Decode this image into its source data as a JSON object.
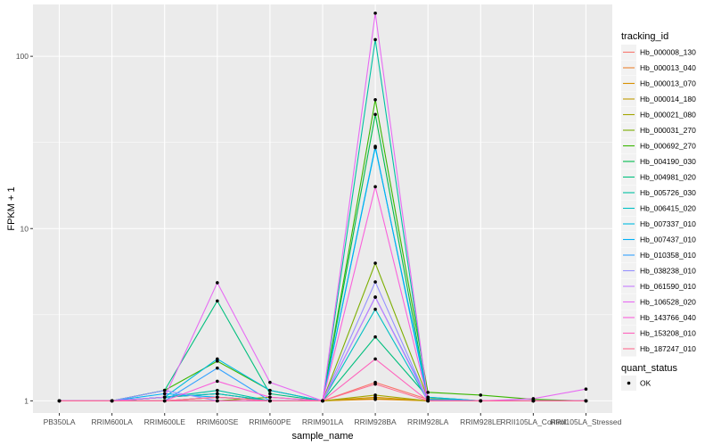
{
  "chart_data": {
    "type": "line",
    "title": "",
    "xlabel": "sample_name",
    "ylabel": "FPKM + 1",
    "y_scale": "log10",
    "ylim": [
      0.85,
      200
    ],
    "y_ticks": [
      1,
      10,
      100
    ],
    "y_tick_labels": [
      "1",
      "10",
      "100"
    ],
    "grid": true,
    "background": "#EBEBEB",
    "categories": [
      "PB350LA",
      "RRIM600LA",
      "RRIM600LE",
      "RRIM600SE",
      "RRIM600PE",
      "RRIM901LA",
      "RRIM928BA",
      "RRIM928LA",
      "RRIM928LE",
      "RRII105LA_Control",
      "RRII105LA_Stressed"
    ],
    "series_legend_title": "tracking_id",
    "series": [
      {
        "name": "Hb_000008_130",
        "color": "#F8766D",
        "values": [
          1,
          1,
          1.05,
          1.1,
          1.0,
          1,
          1.28,
          1.02,
          1,
          1,
          1
        ]
      },
      {
        "name": "Hb_000013_040",
        "color": "#EA8331",
        "values": [
          1,
          1,
          1.0,
          1.0,
          1.0,
          1,
          1.02,
          1.0,
          1,
          1,
          1
        ]
      },
      {
        "name": "Hb_000013_070",
        "color": "#D89000",
        "values": [
          1,
          1,
          1.0,
          1.05,
          1.0,
          1,
          1.05,
          1.0,
          1,
          1,
          1
        ]
      },
      {
        "name": "Hb_000014_180",
        "color": "#C09B00",
        "values": [
          1,
          1,
          1.0,
          1.0,
          1.0,
          1,
          1.03,
          1.0,
          1,
          1,
          1
        ]
      },
      {
        "name": "Hb_000021_080",
        "color": "#A3A500",
        "values": [
          1,
          1,
          1.0,
          1.05,
          1.0,
          1,
          1.08,
          1.0,
          1,
          1,
          1
        ]
      },
      {
        "name": "Hb_000031_270",
        "color": "#7CAE00",
        "values": [
          1,
          1,
          1.0,
          1.0,
          1.05,
          1,
          6.3,
          1.03,
          1,
          1,
          1
        ]
      },
      {
        "name": "Hb_000692_270",
        "color": "#39B600",
        "values": [
          1,
          1,
          1.15,
          1.7,
          1.15,
          1,
          56,
          1.12,
          1.08,
          1.02,
          1
        ]
      },
      {
        "name": "Hb_004190_030",
        "color": "#00BB4E",
        "values": [
          1,
          1,
          1.05,
          1.1,
          1.0,
          1,
          46,
          1.02,
          1,
          1,
          1
        ]
      },
      {
        "name": "Hb_004981_020",
        "color": "#00BF7D",
        "values": [
          1,
          1,
          1.15,
          3.8,
          1.1,
          1,
          2.35,
          1.05,
          1,
          1,
          1
        ]
      },
      {
        "name": "Hb_005726_030",
        "color": "#00C1A3",
        "values": [
          1,
          1,
          1.05,
          1.15,
          1.0,
          1,
          125,
          1.0,
          1,
          1,
          1
        ]
      },
      {
        "name": "Hb_006415_020",
        "color": "#00BFC4",
        "values": [
          1,
          1,
          1.05,
          1.1,
          1.0,
          1,
          3.4,
          1.0,
          1,
          1,
          1
        ]
      },
      {
        "name": "Hb_007337_010",
        "color": "#00BAE0",
        "values": [
          1,
          1,
          1.05,
          1.75,
          1.15,
          1,
          29.5,
          1.05,
          1,
          1,
          1
        ]
      },
      {
        "name": "Hb_007437_010",
        "color": "#00B0F6",
        "values": [
          1,
          1,
          1.1,
          1.05,
          1.0,
          1,
          30,
          1.0,
          1,
          1,
          1
        ]
      },
      {
        "name": "Hb_010358_010",
        "color": "#35A2FF",
        "values": [
          1,
          1,
          1.0,
          1.55,
          1.0,
          1,
          4.0,
          1.02,
          1,
          1,
          1
        ]
      },
      {
        "name": "Hb_038238_010",
        "color": "#9590FF",
        "values": [
          1,
          1,
          1.15,
          1.0,
          1.0,
          1,
          4.9,
          1.0,
          1,
          1,
          1
        ]
      },
      {
        "name": "Hb_061590_010",
        "color": "#C77CFF",
        "values": [
          1,
          1,
          1.0,
          1.05,
          1.0,
          1,
          4.0,
          1.0,
          1,
          1,
          1
        ]
      },
      {
        "name": "Hb_106528_020",
        "color": "#E76BF3",
        "values": [
          1,
          1,
          1.05,
          4.85,
          1.28,
          1,
          178,
          1.0,
          1,
          1.03,
          1.17
        ]
      },
      {
        "name": "Hb_143766_040",
        "color": "#FA62DB",
        "values": [
          1,
          1,
          1.0,
          1.3,
          1.05,
          1,
          17.5,
          1.0,
          1,
          1,
          1
        ]
      },
      {
        "name": "Hb_153208_010",
        "color": "#FF62BC",
        "values": [
          1,
          1,
          1.0,
          1.0,
          1.0,
          1,
          1.75,
          1.0,
          1,
          1,
          1
        ]
      },
      {
        "name": "Hb_187247_010",
        "color": "#FF6C91",
        "values": [
          1,
          1,
          1.0,
          1.05,
          1.0,
          1,
          1.25,
          1.0,
          1,
          1,
          1
        ]
      }
    ],
    "point_legend_title": "quant_status",
    "point_legend_items": [
      "OK"
    ],
    "legend_position": "right"
  }
}
